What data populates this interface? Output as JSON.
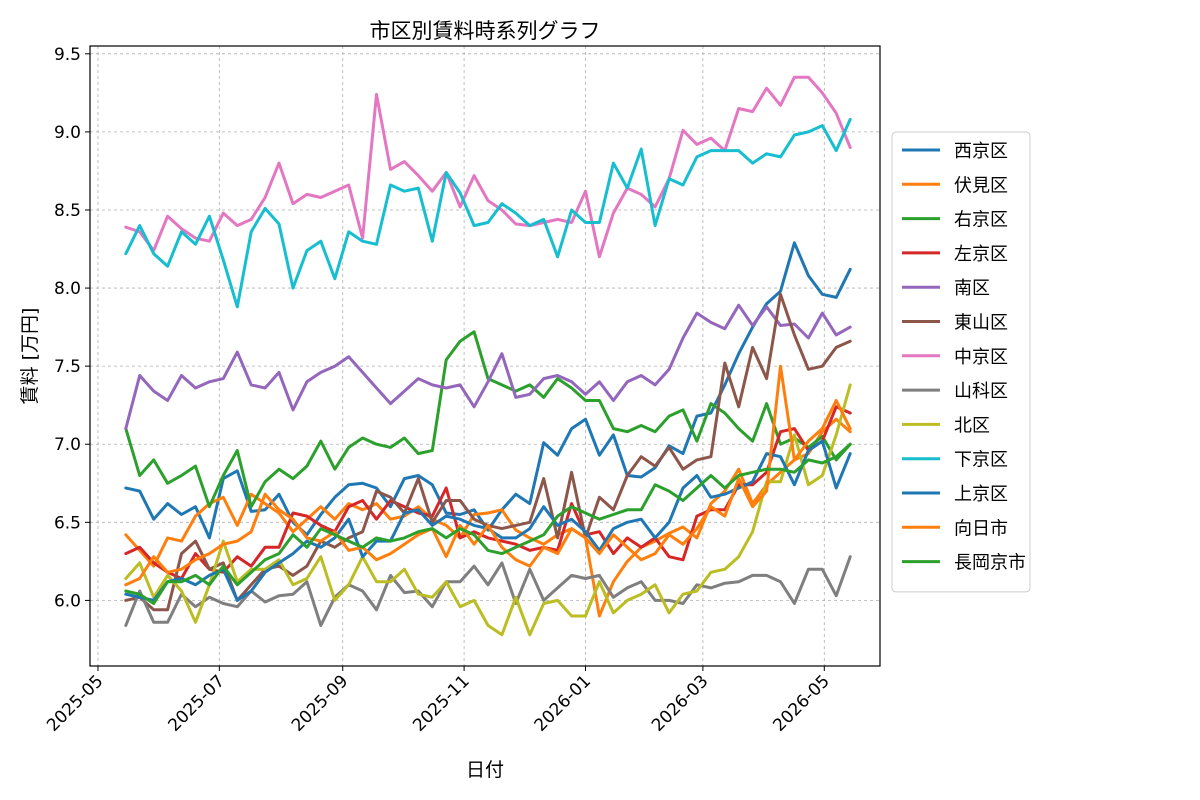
{
  "chart_data": {
    "type": "line",
    "title": "市区別賃料時系列グラフ",
    "xlabel": "日付",
    "ylabel": "賃料 [万円]",
    "x_ticks": [
      "2025-05",
      "2025-07",
      "2025-09",
      "2025-11",
      "2026-01",
      "2026-03",
      "2026-05"
    ],
    "y_ticks": [
      "6.0",
      "6.5",
      "7.0",
      "7.5",
      "8.0",
      "8.5",
      "9.0",
      "9.5"
    ],
    "ylim": [
      5.58,
      9.55
    ],
    "xlim": [
      "2025-04-27",
      "2026-05-29"
    ],
    "grid": true,
    "legend_placement": "outside-right",
    "x": [
      "2025-05-15",
      "2025-05-22",
      "2025-05-29",
      "2025-06-05",
      "2025-06-12",
      "2025-06-19",
      "2025-06-26",
      "2025-07-03",
      "2025-07-10",
      "2025-07-17",
      "2025-07-24",
      "2025-07-31",
      "2025-08-07",
      "2025-08-14",
      "2025-08-21",
      "2025-08-28",
      "2025-09-04",
      "2025-09-11",
      "2025-09-18",
      "2025-09-25",
      "2025-10-02",
      "2025-10-09",
      "2025-10-16",
      "2025-10-23",
      "2025-10-30",
      "2025-11-06",
      "2025-11-13",
      "2025-11-20",
      "2025-11-27",
      "2025-12-04",
      "2025-12-11",
      "2025-12-18",
      "2025-12-25",
      "2026-01-01",
      "2026-01-08",
      "2026-01-15",
      "2026-01-22",
      "2026-01-29",
      "2026-02-05",
      "2026-02-12",
      "2026-02-19",
      "2026-02-26",
      "2026-03-05",
      "2026-03-12",
      "2026-03-19",
      "2026-03-26",
      "2026-04-02",
      "2026-04-09",
      "2026-04-16",
      "2026-04-23",
      "2026-04-30",
      "2026-05-07",
      "2026-05-14"
    ],
    "series": [
      {
        "name": "西京区",
        "color": "#1f77b4",
        "values": [
          6.72,
          6.7,
          6.52,
          6.62,
          6.55,
          6.6,
          6.4,
          6.78,
          6.83,
          6.57,
          6.58,
          6.68,
          6.5,
          6.42,
          6.55,
          6.66,
          6.74,
          6.75,
          6.72,
          6.6,
          6.78,
          6.8,
          6.74,
          6.56,
          6.55,
          6.58,
          6.45,
          6.58,
          6.68,
          6.62,
          7.01,
          6.93,
          7.1,
          7.16,
          6.93,
          7.06,
          6.8,
          6.79,
          6.85,
          6.99,
          6.94,
          7.18,
          7.2,
          7.38,
          7.58,
          7.75,
          7.9,
          7.98,
          8.29,
          8.08,
          7.96,
          7.94,
          8.12
        ]
      },
      {
        "name": "伏見区",
        "color": "#ff7f0e",
        "values": [
          6.42,
          6.32,
          6.22,
          6.4,
          6.38,
          6.54,
          6.62,
          6.66,
          6.48,
          6.68,
          6.62,
          6.56,
          6.44,
          6.52,
          6.6,
          6.52,
          6.62,
          6.58,
          6.62,
          6.52,
          6.54,
          6.6,
          6.52,
          6.48,
          6.4,
          6.55,
          6.56,
          6.58,
          6.45,
          6.4,
          6.36,
          6.42,
          6.46,
          6.4,
          5.9,
          6.12,
          6.25,
          6.34,
          6.38,
          6.43,
          6.47,
          6.4,
          6.62,
          6.7,
          6.84,
          6.62,
          6.74,
          6.82,
          6.9,
          6.94,
          7.08,
          7.16,
          7.08
        ]
      },
      {
        "name": "右京区",
        "color": "#2ca02c",
        "values": [
          7.1,
          6.8,
          6.9,
          6.75,
          6.8,
          6.86,
          6.6,
          6.8,
          6.96,
          6.6,
          6.76,
          6.84,
          6.78,
          6.86,
          7.02,
          6.84,
          6.98,
          7.04,
          7.0,
          6.98,
          7.04,
          6.94,
          6.96,
          7.54,
          7.66,
          7.72,
          7.42,
          7.38,
          7.34,
          7.38,
          7.3,
          7.42,
          7.36,
          7.28,
          7.28,
          7.1,
          7.08,
          7.12,
          7.08,
          7.18,
          7.22,
          7.02,
          7.26,
          7.2,
          7.1,
          7.02,
          7.26,
          7.0,
          7.04,
          6.98,
          7.05,
          6.9,
          7.0
        ]
      },
      {
        "name": "左京区",
        "color": "#d62728",
        "values": [
          6.3,
          6.34,
          6.24,
          6.18,
          6.14,
          6.3,
          6.2,
          6.18,
          6.28,
          6.22,
          6.34,
          6.34,
          6.56,
          6.54,
          6.48,
          6.44,
          6.6,
          6.64,
          6.52,
          6.64,
          6.6,
          6.56,
          6.54,
          6.72,
          6.4,
          6.44,
          6.4,
          6.38,
          6.36,
          6.32,
          6.34,
          6.32,
          6.62,
          6.42,
          6.44,
          6.3,
          6.4,
          6.34,
          6.4,
          6.28,
          6.26,
          6.54,
          6.58,
          6.58,
          6.74,
          6.74,
          6.82,
          7.08,
          7.1,
          6.96,
          7.02,
          7.24,
          7.2
        ]
      },
      {
        "name": "南区",
        "color": "#9467bd",
        "values": [
          7.1,
          7.44,
          7.34,
          7.28,
          7.44,
          7.36,
          7.4,
          7.42,
          7.59,
          7.38,
          7.36,
          7.46,
          7.22,
          7.4,
          7.46,
          7.5,
          7.56,
          7.46,
          7.36,
          7.26,
          7.34,
          7.42,
          7.38,
          7.36,
          7.38,
          7.24,
          7.4,
          7.58,
          7.3,
          7.32,
          7.42,
          7.44,
          7.4,
          7.32,
          7.4,
          7.28,
          7.4,
          7.44,
          7.38,
          7.48,
          7.68,
          7.84,
          7.78,
          7.74,
          7.89,
          7.76,
          7.88,
          7.76,
          7.77,
          7.68,
          7.84,
          7.7,
          7.75
        ]
      },
      {
        "name": "東山区",
        "color": "#8c564b",
        "values": [
          6.0,
          6.02,
          5.94,
          5.94,
          6.3,
          6.38,
          6.2,
          6.24,
          6.0,
          6.1,
          6.2,
          6.22,
          6.16,
          6.22,
          6.38,
          6.34,
          6.4,
          6.44,
          6.7,
          6.66,
          6.56,
          6.78,
          6.5,
          6.64,
          6.64,
          6.52,
          6.48,
          6.46,
          6.48,
          6.5,
          6.78,
          6.4,
          6.82,
          6.4,
          6.66,
          6.58,
          6.8,
          6.92,
          6.86,
          6.98,
          6.84,
          6.9,
          6.92,
          7.52,
          7.24,
          7.62,
          7.42,
          7.96,
          7.7,
          7.48,
          7.5,
          7.62,
          7.66
        ]
      },
      {
        "name": "中京区",
        "color": "#e377c2",
        "values": [
          8.39,
          8.36,
          8.24,
          8.46,
          8.38,
          8.32,
          8.3,
          8.48,
          8.4,
          8.44,
          8.58,
          8.8,
          8.54,
          8.6,
          8.58,
          8.62,
          8.66,
          8.32,
          9.24,
          8.76,
          8.81,
          8.72,
          8.62,
          8.74,
          8.52,
          8.72,
          8.56,
          8.5,
          8.41,
          8.4,
          8.42,
          8.44,
          8.42,
          8.62,
          8.2,
          8.48,
          8.64,
          8.6,
          8.52,
          8.7,
          9.01,
          8.92,
          8.96,
          8.88,
          9.15,
          9.13,
          9.28,
          9.17,
          9.35,
          9.35,
          9.25,
          9.12,
          8.9
        ]
      },
      {
        "name": "山科区",
        "color": "#7f7f7f",
        "values": [
          5.84,
          6.06,
          5.86,
          5.86,
          6.04,
          5.96,
          6.02,
          5.98,
          5.96,
          6.06,
          5.99,
          6.03,
          6.04,
          6.12,
          5.84,
          6.02,
          6.1,
          6.06,
          5.94,
          6.16,
          6.05,
          6.06,
          5.96,
          6.12,
          6.12,
          6.22,
          6.1,
          6.24,
          5.98,
          6.2,
          6.0,
          6.08,
          6.16,
          6.14,
          6.16,
          6.02,
          6.08,
          6.12,
          6.0,
          6.0,
          5.98,
          6.1,
          6.08,
          6.11,
          6.12,
          6.16,
          6.16,
          6.12,
          5.98,
          6.2,
          6.2,
          6.03,
          6.28
        ]
      },
      {
        "name": "北区",
        "color": "#bcbd22",
        "values": [
          6.14,
          6.24,
          6.02,
          6.16,
          6.06,
          5.86,
          6.1,
          6.38,
          6.12,
          6.2,
          6.2,
          6.26,
          6.1,
          6.14,
          6.28,
          6.0,
          6.1,
          6.28,
          6.12,
          6.12,
          6.2,
          6.04,
          6.02,
          6.12,
          5.96,
          6.0,
          5.84,
          5.78,
          6.02,
          5.78,
          5.98,
          6.0,
          5.9,
          5.9,
          6.12,
          5.92,
          6.0,
          6.04,
          6.1,
          5.92,
          6.04,
          6.06,
          6.18,
          6.2,
          6.28,
          6.44,
          6.76,
          6.76,
          7.06,
          6.74,
          6.8,
          7.06,
          7.38
        ]
      },
      {
        "name": "下京区",
        "color": "#17becf",
        "values": [
          8.22,
          8.4,
          8.22,
          8.14,
          8.36,
          8.28,
          8.46,
          8.18,
          7.88,
          8.36,
          8.51,
          8.41,
          8.0,
          8.24,
          8.3,
          8.06,
          8.36,
          8.3,
          8.28,
          8.66,
          8.62,
          8.64,
          8.3,
          8.74,
          8.61,
          8.4,
          8.42,
          8.54,
          8.48,
          8.4,
          8.44,
          8.2,
          8.5,
          8.42,
          8.42,
          8.8,
          8.64,
          8.89,
          8.4,
          8.7,
          8.66,
          8.84,
          8.88,
          8.88,
          8.88,
          8.8,
          8.86,
          8.84,
          8.98,
          9.0,
          9.04,
          8.88,
          9.08
        ]
      },
      {
        "name": "上京区",
        "color": "#1f77b4",
        "values": [
          6.04,
          6.02,
          6.0,
          6.12,
          6.14,
          6.1,
          6.16,
          6.2,
          6.0,
          6.06,
          6.18,
          6.24,
          6.3,
          6.38,
          6.34,
          6.4,
          6.52,
          6.28,
          6.38,
          6.38,
          6.56,
          6.58,
          6.48,
          6.54,
          6.52,
          6.48,
          6.46,
          6.4,
          6.4,
          6.46,
          6.6,
          6.48,
          6.52,
          6.44,
          6.32,
          6.46,
          6.5,
          6.52,
          6.4,
          6.5,
          6.72,
          6.8,
          6.66,
          6.68,
          6.72,
          6.76,
          6.94,
          6.92,
          6.74,
          6.96,
          7.02,
          6.72,
          6.94
        ]
      },
      {
        "name": "向日市",
        "color": "#ff7f0e",
        "values": [
          6.1,
          6.14,
          6.28,
          6.18,
          6.2,
          6.26,
          6.3,
          6.36,
          6.38,
          6.44,
          6.68,
          6.58,
          6.52,
          6.4,
          6.38,
          6.44,
          6.32,
          6.34,
          6.26,
          6.3,
          6.36,
          6.42,
          6.46,
          6.28,
          6.48,
          6.36,
          6.48,
          6.34,
          6.26,
          6.22,
          6.34,
          6.3,
          6.46,
          6.4,
          6.3,
          6.42,
          6.34,
          6.26,
          6.3,
          6.42,
          6.36,
          6.46,
          6.6,
          6.54,
          6.78,
          6.6,
          6.7,
          7.5,
          6.9,
          7.02,
          7.1,
          7.28,
          7.1
        ]
      },
      {
        "name": "長岡京市",
        "color": "#2ca02c",
        "values": [
          6.06,
          6.04,
          5.98,
          6.12,
          6.12,
          6.16,
          6.1,
          6.22,
          6.1,
          6.18,
          6.26,
          6.3,
          6.42,
          6.34,
          6.46,
          6.42,
          6.38,
          6.34,
          6.4,
          6.38,
          6.4,
          6.44,
          6.46,
          6.4,
          6.46,
          6.42,
          6.32,
          6.3,
          6.34,
          6.38,
          6.42,
          6.54,
          6.6,
          6.56,
          6.52,
          6.55,
          6.58,
          6.58,
          6.74,
          6.7,
          6.64,
          6.72,
          6.8,
          6.72,
          6.8,
          6.82,
          6.84,
          6.84,
          6.82,
          6.9,
          6.88,
          6.92,
          7.0
        ]
      }
    ]
  }
}
